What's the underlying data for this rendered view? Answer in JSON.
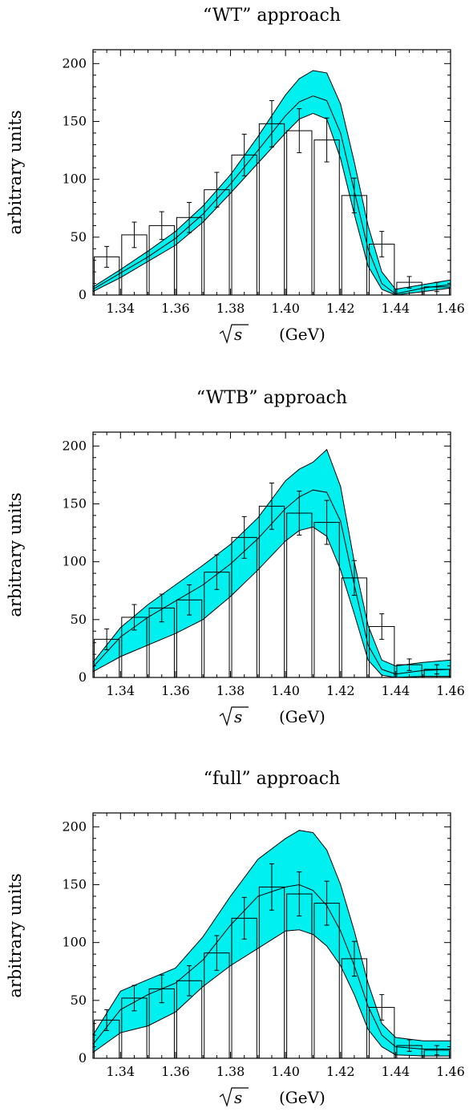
{
  "chart_data": [
    {
      "type": "bar",
      "title": "“WT” approach",
      "ylabel": "arbitrary units",
      "xlabel": "√s    (GeV)",
      "xlabel_var": "s",
      "xlabel_unit": "(GeV)",
      "xlim": [
        1.33,
        1.46
      ],
      "ylim": [
        0,
        212
      ],
      "x_ticks": [
        1.34,
        1.36,
        1.38,
        1.4,
        1.42,
        1.44,
        1.46
      ],
      "x_tick_labels": [
        "1.34",
        "1.36",
        "1.38",
        "1.40",
        "1.42",
        "1.44",
        "1.46"
      ],
      "y_ticks": [
        0,
        50,
        100,
        150,
        200
      ],
      "y_tick_labels": [
        "0",
        "50",
        "100",
        "150",
        "200"
      ],
      "bin_edges": [
        1.33,
        1.34,
        1.35,
        1.36,
        1.37,
        1.38,
        1.39,
        1.4,
        1.41,
        1.42,
        1.43,
        1.44,
        1.45,
        1.46
      ],
      "bar_values": [
        33,
        52,
        60,
        67,
        91,
        121,
        148,
        142,
        134,
        86,
        44,
        11,
        7
      ],
      "bar_errors": [
        9,
        11,
        12,
        13,
        15,
        18,
        20,
        19,
        19,
        15,
        11,
        5,
        4
      ],
      "band": {
        "x": [
          1.33,
          1.34,
          1.35,
          1.36,
          1.37,
          1.38,
          1.39,
          1.4,
          1.405,
          1.41,
          1.415,
          1.42,
          1.425,
          1.43,
          1.435,
          1.44,
          1.45,
          1.46
        ],
        "upper": [
          7,
          22,
          38,
          55,
          77,
          104,
          137,
          173,
          187,
          194,
          192,
          165,
          115,
          60,
          20,
          5,
          9,
          13
        ],
        "central": [
          5,
          19,
          33,
          49,
          70,
          96,
          125,
          155,
          167,
          172,
          168,
          140,
          90,
          40,
          10,
          1,
          6,
          9
        ],
        "lower": [
          3,
          15,
          29,
          43,
          63,
          88,
          114,
          140,
          152,
          157,
          152,
          118,
          70,
          25,
          5,
          0,
          3,
          6
        ]
      }
    },
    {
      "type": "bar",
      "title": "“WTB” approach",
      "ylabel": "arbitrary units",
      "xlabel": "√s    (GeV)",
      "xlabel_var": "s",
      "xlabel_unit": "(GeV)",
      "xlim": [
        1.33,
        1.46
      ],
      "ylim": [
        0,
        212
      ],
      "x_ticks": [
        1.34,
        1.36,
        1.38,
        1.4,
        1.42,
        1.44,
        1.46
      ],
      "x_tick_labels": [
        "1.34",
        "1.36",
        "1.38",
        "1.40",
        "1.42",
        "1.44",
        "1.46"
      ],
      "y_ticks": [
        0,
        50,
        100,
        150,
        200
      ],
      "y_tick_labels": [
        "0",
        "50",
        "100",
        "150",
        "200"
      ],
      "bin_edges": [
        1.33,
        1.34,
        1.35,
        1.36,
        1.37,
        1.38,
        1.39,
        1.4,
        1.41,
        1.42,
        1.43,
        1.44,
        1.45,
        1.46
      ],
      "bar_values": [
        33,
        52,
        60,
        67,
        91,
        121,
        148,
        142,
        134,
        86,
        44,
        11,
        7
      ],
      "bar_errors": [
        9,
        11,
        12,
        13,
        15,
        18,
        20,
        19,
        19,
        15,
        11,
        5,
        4
      ],
      "band": {
        "x": [
          1.33,
          1.34,
          1.35,
          1.36,
          1.37,
          1.38,
          1.39,
          1.4,
          1.405,
          1.41,
          1.415,
          1.42,
          1.425,
          1.43,
          1.435,
          1.44,
          1.45,
          1.46
        ],
        "upper": [
          13,
          43,
          63,
          80,
          97,
          115,
          138,
          170,
          180,
          186,
          197,
          165,
          100,
          45,
          15,
          10,
          13,
          15
        ],
        "central": [
          9,
          35,
          52,
          66,
          80,
          98,
          120,
          146,
          156,
          162,
          160,
          135,
          80,
          28,
          7,
          3,
          6,
          7
        ],
        "lower": [
          5,
          18,
          28,
          38,
          50,
          70,
          93,
          118,
          127,
          130,
          122,
          93,
          55,
          15,
          2,
          0,
          1,
          1
        ]
      }
    },
    {
      "type": "bar",
      "title": "“full” approach",
      "ylabel": "arbitrary units",
      "xlabel": "√s    (GeV)",
      "xlabel_var": "s",
      "xlabel_unit": "(GeV)",
      "xlim": [
        1.33,
        1.46
      ],
      "ylim": [
        0,
        212
      ],
      "x_ticks": [
        1.34,
        1.36,
        1.38,
        1.4,
        1.42,
        1.44,
        1.46
      ],
      "x_tick_labels": [
        "1.34",
        "1.36",
        "1.38",
        "1.40",
        "1.42",
        "1.44",
        "1.46"
      ],
      "y_ticks": [
        0,
        50,
        100,
        150,
        200
      ],
      "y_tick_labels": [
        "0",
        "50",
        "100",
        "150",
        "200"
      ],
      "bin_edges": [
        1.33,
        1.34,
        1.35,
        1.36,
        1.37,
        1.38,
        1.39,
        1.4,
        1.41,
        1.42,
        1.43,
        1.44,
        1.45,
        1.46
      ],
      "bar_values": [
        33,
        52,
        60,
        67,
        91,
        121,
        148,
        142,
        134,
        86,
        44,
        11,
        7
      ],
      "bar_errors": [
        9,
        11,
        12,
        13,
        15,
        18,
        20,
        19,
        19,
        15,
        11,
        5,
        4
      ],
      "band": {
        "x": [
          1.33,
          1.34,
          1.35,
          1.36,
          1.37,
          1.38,
          1.39,
          1.4,
          1.405,
          1.41,
          1.415,
          1.42,
          1.425,
          1.43,
          1.435,
          1.44,
          1.45,
          1.46
        ],
        "upper": [
          20,
          58,
          68,
          78,
          105,
          140,
          172,
          190,
          197,
          195,
          180,
          150,
          110,
          65,
          30,
          18,
          15,
          15
        ],
        "central": [
          12,
          42,
          55,
          65,
          85,
          115,
          140,
          148,
          150,
          145,
          132,
          110,
          80,
          45,
          20,
          10,
          8,
          8
        ],
        "lower": [
          5,
          22,
          28,
          40,
          62,
          80,
          95,
          110,
          111,
          107,
          97,
          80,
          55,
          25,
          10,
          3,
          2,
          2
        ]
      }
    }
  ]
}
